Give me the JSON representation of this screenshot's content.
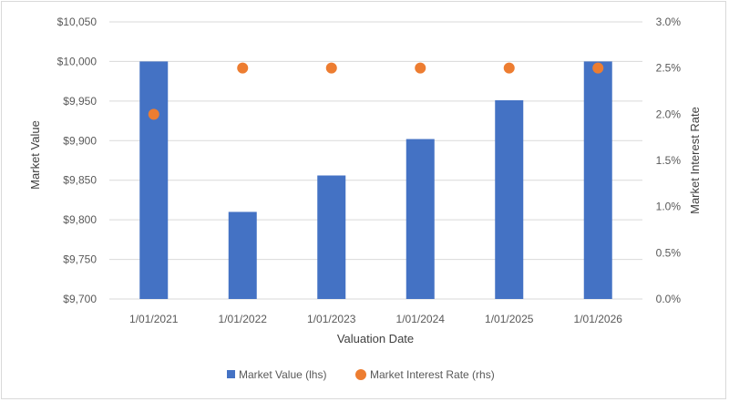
{
  "chart_data": {
    "type": "bar",
    "title": "",
    "xlabel": "Valuation Date",
    "ylabel": "Market Value",
    "y2label": "Market Interest Rate",
    "categories": [
      "1/01/2021",
      "1/01/2022",
      "1/01/2023",
      "1/01/2024",
      "1/01/2025",
      "1/01/2026"
    ],
    "ylim": [
      9700,
      10050
    ],
    "y_ticks": [
      "$10,050",
      "$10,000",
      "$9,950",
      "$9,900",
      "$9,850",
      "$9,800",
      "$9,750",
      "$9,700"
    ],
    "y2lim": [
      0.0,
      3.0
    ],
    "y2_ticks": [
      "3.0%",
      "2.5%",
      "2.0%",
      "1.5%",
      "1.0%",
      "0.5%",
      "0.0%"
    ],
    "series": [
      {
        "name": "Market Value (lhs)",
        "type": "bar",
        "axis": "left",
        "color": "#4472c4",
        "values": [
          10000,
          9810,
          9856,
          9902,
          9951,
          10000
        ]
      },
      {
        "name": "Market Interest Rate (rhs)",
        "type": "scatter",
        "axis": "right",
        "color": "#ed7d31",
        "values": [
          2.0,
          2.5,
          2.5,
          2.5,
          2.5,
          2.5
        ]
      }
    ],
    "grid": true,
    "legend_position": "bottom"
  }
}
